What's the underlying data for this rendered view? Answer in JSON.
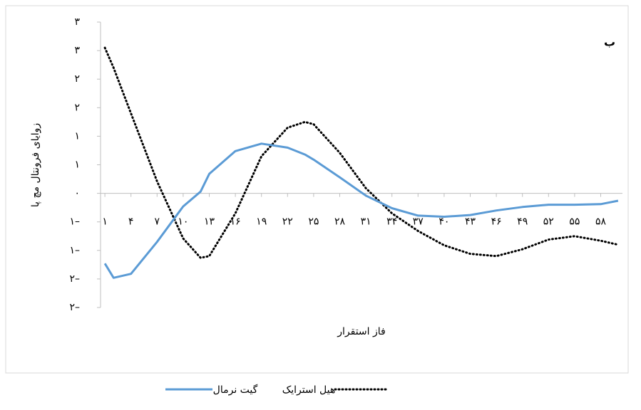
{
  "chart_data": {
    "type": "line",
    "panel_label": "ب",
    "x_label": "فاز استقرار",
    "y_label": "زوایای فرونتال مچ پا",
    "x": [
      1,
      2,
      4,
      7,
      10,
      12,
      13,
      16,
      19,
      22,
      24,
      25,
      28,
      31,
      34,
      37,
      40,
      43,
      46,
      49,
      52,
      55,
      58,
      60
    ],
    "series": [
      {
        "name": "هیل استرایک",
        "color": "#000000",
        "dashed": true,
        "values": [
          2.55,
          2.2,
          1.4,
          0.21,
          -0.79,
          -1.13,
          -1.1,
          -0.35,
          0.65,
          1.15,
          1.25,
          1.21,
          0.71,
          0.09,
          -0.35,
          -0.66,
          -0.91,
          -1.06,
          -1.1,
          -0.98,
          -0.81,
          -0.75,
          -0.83,
          -0.9
        ]
      },
      {
        "name": "گیت نرمال",
        "color": "#5b9bd5",
        "dashed": false,
        "values": [
          -1.23,
          -1.48,
          -1.41,
          -0.85,
          -0.23,
          0.03,
          0.34,
          0.74,
          0.87,
          0.8,
          0.68,
          0.59,
          0.28,
          -0.04,
          -0.26,
          -0.39,
          -0.41,
          -0.38,
          -0.3,
          -0.24,
          -0.2,
          -0.2,
          -0.19,
          -0.13
        ]
      }
    ],
    "xlim": [
      0.5,
      60.5
    ],
    "xticks": [
      {
        "value": 1,
        "label": "۱"
      },
      {
        "value": 4,
        "label": "۴"
      },
      {
        "value": 7,
        "label": "۷"
      },
      {
        "value": 10,
        "label": "۱۰"
      },
      {
        "value": 13,
        "label": "۱۳"
      },
      {
        "value": 16,
        "label": "۱۶"
      },
      {
        "value": 19,
        "label": "۱۹"
      },
      {
        "value": 22,
        "label": "۲۲"
      },
      {
        "value": 25,
        "label": "۲۵"
      },
      {
        "value": 28,
        "label": "۲۸"
      },
      {
        "value": 31,
        "label": "۳۱"
      },
      {
        "value": 34,
        "label": "۳۴"
      },
      {
        "value": 37,
        "label": "۳۷"
      },
      {
        "value": 40,
        "label": "۴۰"
      },
      {
        "value": 43,
        "label": "۴۳"
      },
      {
        "value": 46,
        "label": "۴۶"
      },
      {
        "value": 49,
        "label": "۴۹"
      },
      {
        "value": 52,
        "label": "۵۲"
      },
      {
        "value": 55,
        "label": "۵۵"
      },
      {
        "value": 58,
        "label": "۵۸"
      }
    ],
    "ylim": [
      -2,
      3
    ],
    "yticks": [
      {
        "value": 3,
        "label": "۳"
      },
      {
        "value": 2.5,
        "label": "۳"
      },
      {
        "value": 2,
        "label": "۲"
      },
      {
        "value": 1.5,
        "label": "۲"
      },
      {
        "value": 1,
        "label": "۱"
      },
      {
        "value": 0.5,
        "label": "۱"
      },
      {
        "value": 0,
        "label": "٠"
      },
      {
        "value": -0.5,
        "label": "۱–"
      },
      {
        "value": -1,
        "label": "۱–"
      },
      {
        "value": -1.5,
        "label": "۲–"
      },
      {
        "value": -2,
        "label": "۲–"
      }
    ]
  }
}
